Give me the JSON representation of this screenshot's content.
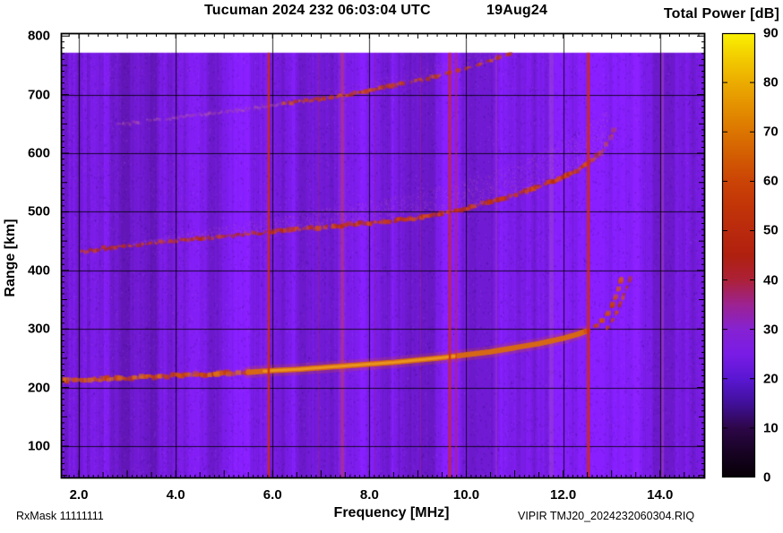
{
  "header": {
    "title": "Tucuman 2024 232 06:03:04 UTC",
    "date": "19Aug24",
    "colorbar_title": "Total Power [dB]"
  },
  "footer": {
    "rx_mask": "RxMask 11111111",
    "file_id": "VIPIR  TMJ20_2024232060304.RIQ"
  },
  "chart_data": {
    "type": "heatmap",
    "title": "Tucuman 2024 232 06:03:04 UTC",
    "date": "19Aug24",
    "xlabel": "Frequency [MHz]",
    "ylabel": "Range [km]",
    "xlim": [
      1.63,
      14.93
    ],
    "ylim": [
      45,
      805
    ],
    "x_major_ticks": [
      2,
      4,
      6,
      8,
      10,
      12,
      14
    ],
    "x_tick_labels": [
      "2.0",
      "4.0",
      "6.0",
      "8.0",
      "10.0",
      "12.0",
      "14.0"
    ],
    "y_major_ticks": [
      100,
      200,
      300,
      400,
      500,
      600,
      700,
      800
    ],
    "y_tick_labels": [
      "100",
      "200",
      "300",
      "400",
      "500",
      "600",
      "700",
      "800"
    ],
    "x_minor_step": 0.1,
    "x_medium_step": 0.5,
    "x_top_step": 0.2,
    "y_minor_step": 10,
    "y_medium_step": 50,
    "grid": true,
    "data_top_km": 772,
    "background_level_db": 25,
    "colorbar": {
      "title": "Total Power [dB]",
      "min": 0,
      "max": 90,
      "tick_step": 10,
      "labels": [
        "0",
        "10",
        "20",
        "30",
        "40",
        "50",
        "60",
        "70",
        "80",
        "90"
      ],
      "stops": [
        [
          0,
          "#070006"
        ],
        [
          5,
          "#180324"
        ],
        [
          10,
          "#2d0748"
        ],
        [
          15,
          "#41109a"
        ],
        [
          20,
          "#5a17d2"
        ],
        [
          25,
          "#7a1ce6"
        ],
        [
          30,
          "#8622d2"
        ],
        [
          35,
          "#9d2392"
        ],
        [
          40,
          "#ac2138"
        ],
        [
          45,
          "#b0200f"
        ],
        [
          50,
          "#ba2a0e"
        ],
        [
          55,
          "#c23508"
        ],
        [
          60,
          "#cb4406"
        ],
        [
          65,
          "#d35c03"
        ],
        [
          70,
          "#dc7501"
        ],
        [
          75,
          "#e49000"
        ],
        [
          80,
          "#ecac00"
        ],
        [
          85,
          "#f3cc00"
        ],
        [
          90,
          "#faf200"
        ]
      ]
    },
    "background": {
      "base": "#7a1ce6",
      "bands": [
        [
          1.63,
          1.78,
          -0.06
        ],
        [
          2.15,
          2.5,
          -0.1
        ],
        [
          2.62,
          3.05,
          -0.08
        ],
        [
          3.15,
          3.6,
          -0.09
        ],
        [
          3.95,
          4.1,
          0.03
        ],
        [
          4.15,
          4.45,
          -0.05
        ],
        [
          5.05,
          5.5,
          0.04
        ],
        [
          5.55,
          5.8,
          -0.03
        ],
        [
          6.25,
          6.45,
          0.05
        ],
        [
          6.8,
          7.05,
          0.04
        ],
        [
          8.2,
          8.45,
          -0.04
        ],
        [
          8.6,
          8.85,
          -0.05
        ],
        [
          9.05,
          9.35,
          -0.03
        ],
        [
          10.2,
          10.5,
          0.04
        ],
        [
          11.1,
          11.3,
          0.03
        ],
        [
          12.1,
          12.3,
          -0.03
        ],
        [
          13.45,
          13.85,
          0.05
        ],
        [
          14.3,
          14.65,
          0.06
        ]
      ]
    },
    "interference_lines": [
      {
        "freq": 5.92,
        "width": 2.5,
        "color": "#d02a12",
        "alpha": 0.92,
        "strong": true
      },
      {
        "freq": 7.44,
        "width": 3.5,
        "color": "#c43b55",
        "alpha": 0.55,
        "strong": false
      },
      {
        "freq": 7.44,
        "width": 10,
        "color": "#aa3cb4",
        "alpha": 0.15,
        "strong": false
      },
      {
        "freq": 9.66,
        "width": 2.5,
        "color": "#d02a12",
        "alpha": 0.88,
        "strong": true
      },
      {
        "freq": 9.79,
        "width": 1.5,
        "color": "#d02a12",
        "alpha": 0.68,
        "strong": true
      },
      {
        "freq": 11.76,
        "width": 5,
        "color": "#a84fd0",
        "alpha": 0.4,
        "strong": false
      },
      {
        "freq": 12.52,
        "width": 3,
        "color": "#d02a12",
        "alpha": 0.92,
        "strong": true
      },
      {
        "freq": 14.05,
        "width": 3.5,
        "color": "#b149c9",
        "alpha": 0.45,
        "strong": false
      },
      {
        "freq": 6.95,
        "width": 1.5,
        "color": "#b63340",
        "alpha": 0.28,
        "strong": false
      },
      {
        "freq": 8.12,
        "width": 1.5,
        "color": "#b63360",
        "alpha": 0.22,
        "strong": false
      },
      {
        "freq": 9.06,
        "width": 1.5,
        "color": "#b63350",
        "alpha": 0.22,
        "strong": false
      },
      {
        "freq": 10.62,
        "width": 2,
        "color": "#b44a9e",
        "alpha": 0.3,
        "strong": false
      }
    ],
    "traces": [
      {
        "name": "F2-layer first hop echo (O-mode)",
        "asymptote_mhz": 13.2,
        "min_range_km": 211,
        "points": [
          [
            1.65,
            211
          ],
          [
            2.0,
            213
          ],
          [
            2.5,
            214
          ],
          [
            3.0,
            216
          ],
          [
            3.5,
            218
          ],
          [
            4.0,
            220
          ],
          [
            4.5,
            222
          ],
          [
            5.0,
            224
          ],
          [
            5.5,
            226
          ],
          [
            6.0,
            229
          ],
          [
            6.5,
            231
          ],
          [
            7.0,
            234
          ],
          [
            7.5,
            237
          ],
          [
            8.0,
            240
          ],
          [
            8.5,
            243
          ],
          [
            9.0,
            247
          ],
          [
            9.5,
            251
          ],
          [
            10.0,
            256
          ],
          [
            10.5,
            261
          ],
          [
            11.0,
            268
          ],
          [
            11.5,
            275
          ],
          [
            12.0,
            284
          ],
          [
            12.3,
            291
          ],
          [
            12.5,
            297
          ],
          [
            12.7,
            306
          ],
          [
            12.85,
            317
          ],
          [
            12.95,
            330
          ],
          [
            13.05,
            347
          ],
          [
            13.12,
            363
          ],
          [
            13.18,
            379
          ],
          [
            13.22,
            393
          ]
        ],
        "segments": [
          {
            "f0": 1.63,
            "f1": 5.5,
            "style": "speckled",
            "width": 5,
            "alpha": 0.9,
            "palette": [
              "#cf5110",
              "#dd6f16",
              "#c23c0e"
            ]
          },
          {
            "f0": 5.5,
            "f1": 12.45,
            "style": "smooth",
            "width": 6,
            "color": "#d96a10",
            "glow": "#e3540c",
            "core": "#ec9a1e",
            "core_f0": 5.8,
            "core_f1": 9.8
          },
          {
            "f0": 12.45,
            "f1": 13.24,
            "style": "dashed",
            "width": 4.5,
            "alpha": 0.92,
            "dash": 5,
            "palette": [
              "#c84412",
              "#d4581a",
              "#bc3410"
            ]
          }
        ]
      },
      {
        "name": "F2-layer first hop X-mode cusp",
        "asymptote_mhz": 13.42,
        "points": [
          [
            12.9,
            300
          ],
          [
            13.0,
            312
          ],
          [
            13.1,
            327
          ],
          [
            13.2,
            347
          ],
          [
            13.3,
            367
          ],
          [
            13.37,
            382
          ],
          [
            13.42,
            394
          ]
        ],
        "segments": [
          {
            "f0": 12.88,
            "f1": 13.44,
            "style": "dashed",
            "width": 3.8,
            "alpha": 0.8,
            "dash": 5,
            "palette": [
              "#c03a16",
              "#cc4c1c",
              "#b03012"
            ]
          }
        ]
      },
      {
        "name": "second hop (multiple) echo",
        "points": [
          [
            2.05,
            431
          ],
          [
            2.5,
            437
          ],
          [
            3.0,
            442
          ],
          [
            3.5,
            446
          ],
          [
            4.0,
            450
          ],
          [
            4.5,
            454
          ],
          [
            5.0,
            458
          ],
          [
            5.5,
            462
          ],
          [
            6.0,
            466
          ],
          [
            6.5,
            470
          ],
          [
            7.0,
            473
          ],
          [
            7.5,
            477
          ],
          [
            8.0,
            481
          ],
          [
            8.5,
            485
          ],
          [
            9.0,
            490
          ],
          [
            9.5,
            497
          ],
          [
            10.0,
            506
          ],
          [
            10.5,
            517
          ],
          [
            11.0,
            529
          ],
          [
            11.5,
            543
          ],
          [
            12.0,
            559
          ],
          [
            12.3,
            570
          ],
          [
            12.6,
            587
          ],
          [
            12.8,
            603
          ],
          [
            12.95,
            621
          ],
          [
            13.08,
            643
          ]
        ],
        "segments": [
          {
            "f0": 2.05,
            "f1": 6.0,
            "style": "speckled",
            "width": 3.6,
            "alpha": 0.75,
            "palette": [
              "#c23311",
              "#d14617",
              "#b02a0e"
            ]
          },
          {
            "f0": 6.0,
            "f1": 12.6,
            "style": "speckled",
            "width": 4.6,
            "alpha": 0.85,
            "palette": [
              "#c83813",
              "#d64c19",
              "#b52c0e"
            ]
          },
          {
            "f0": 12.6,
            "f1": 13.1,
            "style": "speckled",
            "width": 5,
            "alpha": 0.45,
            "palette": [
              "#c04020",
              "#cc5630",
              "#b03418"
            ]
          }
        ]
      },
      {
        "name": "third hop (multiple) echo",
        "points": [
          [
            2.8,
            648
          ],
          [
            3.5,
            656
          ],
          [
            4.0,
            661
          ],
          [
            4.5,
            665
          ],
          [
            5.0,
            670
          ],
          [
            5.5,
            675
          ],
          [
            6.0,
            681
          ],
          [
            6.5,
            687
          ],
          [
            7.0,
            693
          ],
          [
            7.5,
            699
          ],
          [
            8.0,
            707
          ],
          [
            8.5,
            715
          ],
          [
            9.0,
            724
          ],
          [
            9.5,
            734
          ],
          [
            10.0,
            745
          ],
          [
            10.3,
            752
          ],
          [
            10.6,
            761
          ],
          [
            10.9,
            770
          ],
          [
            11.1,
            778
          ]
        ],
        "segments": [
          {
            "f0": 2.8,
            "f1": 6.2,
            "style": "speckled",
            "width": 3,
            "alpha": 0.4,
            "palette": [
              "#b85a9c",
              "#c46cae",
              "#a84e8e"
            ]
          },
          {
            "f0": 6.2,
            "f1": 9.4,
            "style": "speckled",
            "width": 4,
            "alpha": 0.8,
            "palette": [
              "#c33d1c",
              "#cf5524",
              "#b23414"
            ]
          },
          {
            "f0": 9.4,
            "f1": 11.1,
            "style": "dashed",
            "width": 4,
            "alpha": 0.8,
            "dash": 6,
            "palette": [
              "#c33d1c",
              "#cf5524",
              "#b23414"
            ]
          }
        ]
      }
    ],
    "scatter_clouds": [
      {
        "trace": 2,
        "f0": 3.0,
        "f1": 12.9,
        "min_above_km": 6,
        "max_above_km": 70,
        "color": "#c35fc2",
        "alpha": 0.2,
        "count": 5600
      },
      {
        "trace": 3,
        "f0": 4.0,
        "f1": 10.9,
        "min_above_km": 5,
        "max_above_km": 30,
        "color": "#c35fc2",
        "alpha": 0.14,
        "count": 1900
      },
      {
        "trace": 0,
        "f0": 1.8,
        "f1": 6.0,
        "min_above_km": 3,
        "max_above_km": 12,
        "color": "#cc58b0",
        "alpha": 0.12,
        "count": 900
      }
    ]
  }
}
